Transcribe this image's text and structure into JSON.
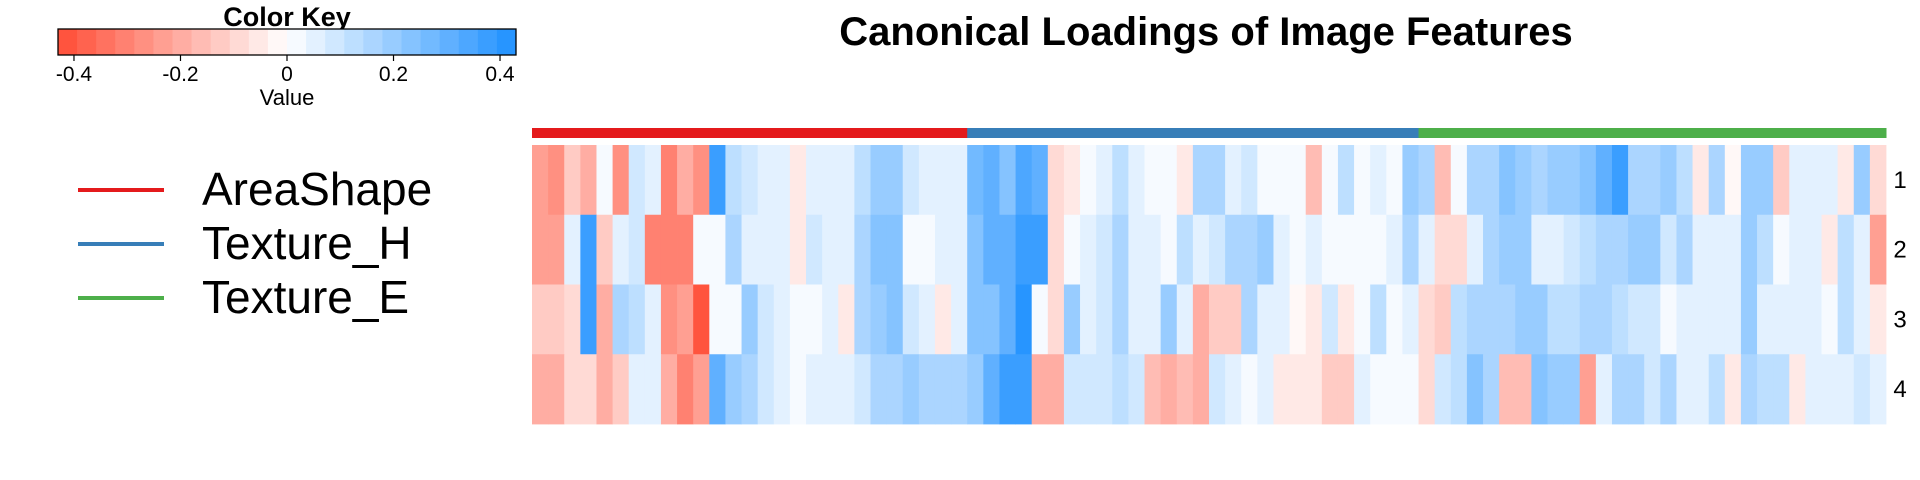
{
  "chart_data": {
    "type": "heatmap",
    "title": "Canonical Loadings of Image Features",
    "color_key": {
      "title": "Color Key",
      "label": "Value",
      "ticks": [
        "-0.4",
        "-0.2",
        "0",
        "0.2",
        "0.4"
      ],
      "tick_values": [
        -0.4,
        -0.2,
        0,
        0.2,
        0.4
      ],
      "range": [
        -0.43,
        0.43
      ],
      "steps": 24,
      "low_color": "#FF4D36",
      "mid_color": "#FFFFFF",
      "high_color": "#1E90FF"
    },
    "groups": [
      {
        "name": "AreaShape",
        "color": "#E41A1C",
        "count": 27
      },
      {
        "name": "Texture_H",
        "color": "#377EB8",
        "count": 28
      },
      {
        "name": "Texture_E",
        "color": "#4DAF4A",
        "count": 29
      }
    ],
    "row_labels": [
      "1",
      "2",
      "3",
      "4"
    ],
    "values": [
      [
        -0.22,
        -0.28,
        -0.12,
        -0.2,
        0.03,
        -0.26,
        0.1,
        0.05,
        -0.3,
        -0.2,
        -0.28,
        0.38,
        0.12,
        0.1,
        0.05,
        0.04,
        -0.06,
        0.07,
        0.05,
        0.05,
        0.12,
        0.2,
        0.2,
        0.1,
        0.04,
        0.04,
        0.04,
        0.28,
        0.3,
        0.25,
        0.35,
        0.3,
        -0.1,
        -0.05,
        0.02,
        0.04,
        0.12,
        0.05,
        0.03,
        0.03,
        -0.06,
        0.15,
        0.15,
        0.05,
        0.08,
        0.02,
        0,
        0,
        -0.15,
        0,
        0.12,
        0,
        0.05,
        0,
        0.18,
        0.15,
        -0.15,
        0.02,
        0.15,
        0.15,
        0.25,
        0.2,
        0.15,
        0.18,
        0.2,
        0.22,
        0.3,
        0.38,
        0.15,
        0.15,
        0.18,
        0.12,
        -0.04,
        0.15,
        -0.03,
        0.2,
        0.18,
        -0.12,
        0.05,
        0.05,
        0.05,
        -0.05,
        0.2,
        -0.08
      ],
      [
        -0.24,
        -0.22,
        0.04,
        0.38,
        -0.14,
        0.05,
        0.1,
        -0.3,
        -0.3,
        -0.3,
        0,
        0,
        0.15,
        0.06,
        0.06,
        0.05,
        -0.06,
        0.08,
        0.04,
        0.05,
        0.15,
        0.22,
        0.22,
        0,
        0,
        0.04,
        0.04,
        0.25,
        0.3,
        0.32,
        0.38,
        0.38,
        -0.1,
        0.02,
        0.04,
        0.08,
        0.15,
        0.05,
        0.04,
        0.02,
        0.12,
        0.05,
        0.08,
        0.15,
        0.15,
        0.2,
        0.05,
        0,
        0.05,
        0,
        0,
        0,
        0,
        0.05,
        0.15,
        0.05,
        -0.1,
        -0.1,
        0.05,
        0.15,
        0.2,
        0.2,
        0.05,
        0.06,
        0.1,
        0.12,
        0.15,
        0.15,
        0.18,
        0.2,
        0.08,
        0.15,
        0.05,
        0.05,
        0.05,
        0.18,
        0.12,
        0.03,
        0.05,
        0.05,
        -0.05,
        0.12,
        0.05,
        -0.25
      ],
      [
        -0.12,
        -0.12,
        -0.08,
        0.38,
        -0.18,
        0.15,
        0.12,
        0.04,
        -0.28,
        -0.22,
        -0.4,
        0,
        0,
        0.18,
        0.1,
        0.05,
        0.02,
        0,
        0.05,
        -0.05,
        0.15,
        0.2,
        0.22,
        0.1,
        0.05,
        -0.05,
        0.06,
        0.25,
        0.25,
        0.3,
        0.4,
        0,
        -0.08,
        0.2,
        0.05,
        0.08,
        0.15,
        0.05,
        0.04,
        0.2,
        0.05,
        -0.18,
        -0.12,
        -0.12,
        0.15,
        0.05,
        0.05,
        -0.03,
        -0.05,
        0.08,
        -0.04,
        0,
        0.12,
        0,
        0.05,
        -0.1,
        -0.12,
        0.12,
        0.15,
        0.15,
        0.15,
        0.2,
        0.2,
        0.12,
        0.12,
        0.15,
        0.15,
        0.12,
        0.08,
        0.08,
        0,
        0.05,
        0.05,
        0.05,
        0.05,
        0.2,
        0.05,
        0.05,
        0.05,
        0.05,
        0,
        0.12,
        0.05,
        -0.05
      ],
      [
        -0.2,
        -0.18,
        -0.1,
        -0.08,
        -0.2,
        -0.12,
        0.05,
        0.05,
        -0.2,
        -0.3,
        -0.24,
        0.32,
        0.2,
        0.15,
        0.08,
        0.05,
        0,
        0.05,
        0.05,
        0.05,
        0.1,
        0.15,
        0.15,
        0.2,
        0.15,
        0.15,
        0.15,
        0.2,
        0.3,
        0.38,
        0.38,
        -0.18,
        -0.18,
        0.1,
        0.1,
        0.1,
        0.12,
        0.1,
        -0.15,
        -0.18,
        -0.16,
        -0.18,
        0.08,
        0.05,
        0,
        0.05,
        -0.05,
        -0.05,
        -0.05,
        -0.12,
        -0.12,
        0.05,
        0.03,
        0.03,
        0,
        -0.08,
        0.1,
        0.12,
        0.25,
        0.15,
        -0.15,
        -0.15,
        0.22,
        0.2,
        0.2,
        -0.25,
        0.05,
        0.15,
        0.15,
        0.1,
        0.15,
        0.05,
        0.05,
        0.12,
        -0.05,
        0.15,
        0.12,
        0.12,
        -0.05,
        0.05,
        0.05,
        0.05,
        0.1,
        0.05
      ]
    ]
  }
}
